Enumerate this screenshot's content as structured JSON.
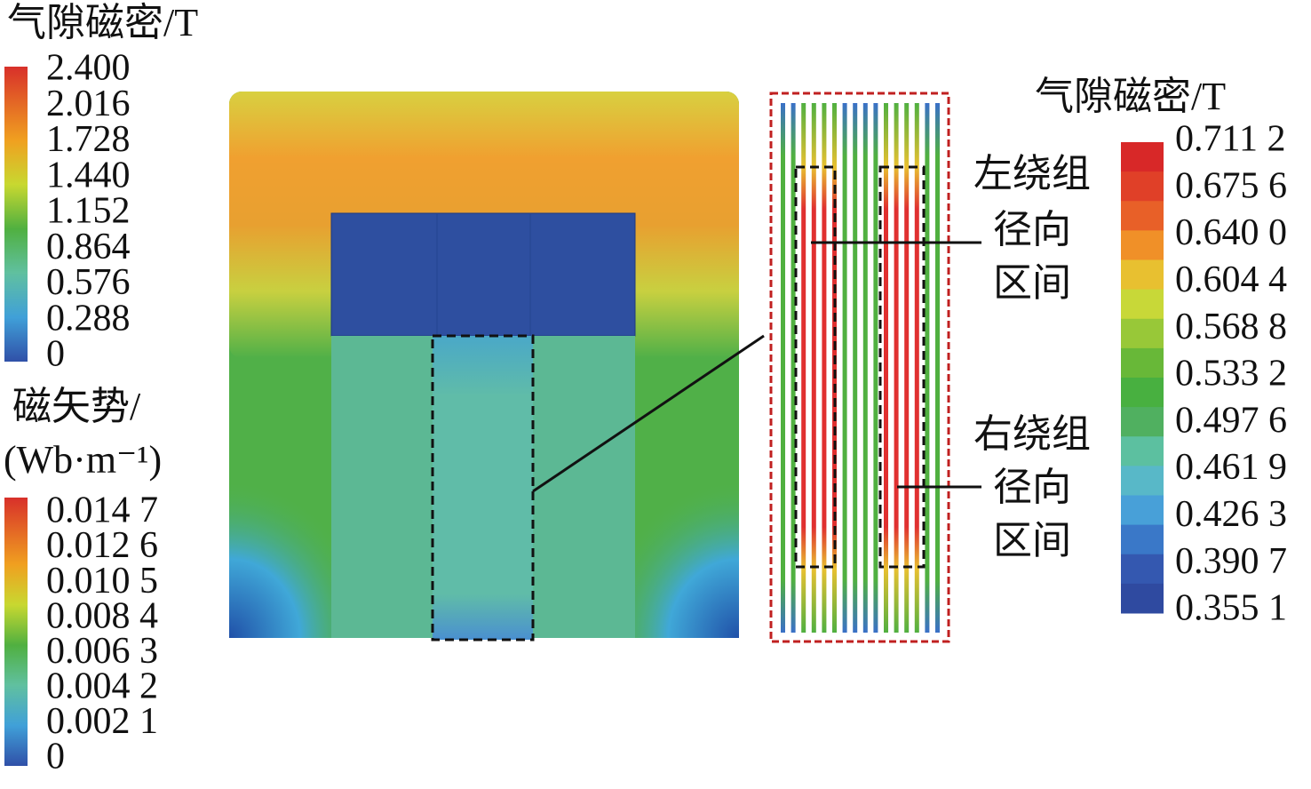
{
  "legend_flux": {
    "title": "气隙磁密/T",
    "labels": [
      "2.400",
      "2.016",
      "1.728",
      "1.440",
      "1.152",
      "0.864",
      "0.576",
      "0.288",
      "0"
    ]
  },
  "legend_potential": {
    "title_lines": [
      "磁矢势/",
      "(Wb·m⁻¹)"
    ],
    "labels": [
      "0.014 7",
      "0.012 6",
      "0.010 5",
      "0.008 4",
      "0.006 3",
      "0.004 2",
      "0.002 1",
      "0"
    ]
  },
  "legend_zoom": {
    "title": "气隙磁密/T",
    "labels": [
      "0.711 2",
      "0.675 6",
      "0.640 0",
      "0.604 4",
      "0.568 8",
      "0.533 2",
      "0.497 6",
      "0.461 9",
      "0.426 3",
      "0.390 7",
      "0.355 1"
    ]
  },
  "annotations": {
    "left": [
      "左绕组",
      "径向",
      "区间"
    ],
    "right": [
      "右绕组",
      "径向",
      "区间"
    ]
  }
}
